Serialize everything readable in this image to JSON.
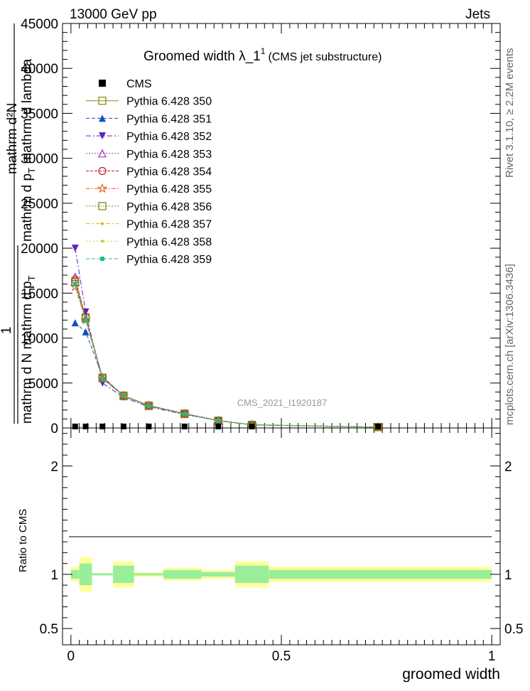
{
  "header": {
    "left": "13000 GeV pp",
    "right": "Jets",
    "title_main": "Groomed width  λ_1",
    "title_sup": "1",
    "title_sub": "(CMS jet substructure)",
    "analysis_tag": "CMS_2021_I1920187",
    "side_rivet": "Rivet 3.1.10, ≥ 2.2M events",
    "side_mcplots": "mcplots.cern.ch [arXiv:1306.3436]"
  },
  "main_ylabel": {
    "num": "mathrm d²N",
    "num2": "mathrm d p",
    "num2_sub": "T",
    "num2_tail": " mathrm d lambda",
    "one": "1",
    "den": "mathrm d N  mathrm d p",
    "den_sub": "T"
  },
  "ratio_ylabel": "Ratio to CMS",
  "xlabel": "groomed width",
  "chart_data": [
    {
      "type": "line",
      "panel": "main",
      "xlim": [
        -0.02,
        1.02
      ],
      "ylim": [
        0,
        45000
      ],
      "yticks": [
        0,
        5000,
        10000,
        15000,
        20000,
        25000,
        30000,
        35000,
        40000,
        45000
      ],
      "ytick_labels": [
        "0",
        "5000",
        "10000",
        "15000",
        "20000",
        "25000",
        "30000",
        "35000",
        "40000",
        "45000"
      ],
      "x": [
        0.01,
        0.035,
        0.075,
        0.125,
        0.185,
        0.27,
        0.35,
        0.43,
        0.73
      ],
      "legend_position": "top-left",
      "series": [
        {
          "name": "CMS",
          "color": "#000000",
          "style": "data",
          "values": [
            10,
            10,
            10,
            10,
            10,
            10,
            10,
            10,
            10
          ]
        },
        {
          "name": "Pythia 6.428 350",
          "color": "#8c8c1a",
          "marker": "square-open",
          "dash": "",
          "values": [
            16200,
            12300,
            5600,
            3600,
            2500,
            1600,
            800,
            350,
            90
          ]
        },
        {
          "name": "Pythia 6.428 351",
          "color": "#1050c0",
          "marker": "triangle-up",
          "dash": "5,3",
          "values": [
            11700,
            10700,
            5700,
            3600,
            2500,
            1600,
            850,
            370,
            95
          ]
        },
        {
          "name": "Pythia 6.428 352",
          "color": "#5b22c0",
          "marker": "triangle-down",
          "dash": "7,3,2,3",
          "values": [
            20000,
            12900,
            5000,
            3400,
            2350,
            1500,
            800,
            340,
            90
          ]
        },
        {
          "name": "Pythia 6.428 353",
          "color": "#b030b0",
          "marker": "triangle-open",
          "dash": "2,2",
          "values": [
            16800,
            12200,
            5600,
            3550,
            2450,
            1550,
            820,
            350,
            90
          ]
        },
        {
          "name": "Pythia 6.428 354",
          "color": "#c01530",
          "marker": "circle-open",
          "dash": "4,2",
          "values": [
            16500,
            12300,
            5600,
            3600,
            2500,
            1600,
            820,
            350,
            90
          ]
        },
        {
          "name": "Pythia 6.428 355",
          "color": "#e06010",
          "marker": "star-open",
          "dash": "6,2,2,2",
          "values": [
            15700,
            12000,
            5500,
            3600,
            2450,
            1550,
            810,
            350,
            90
          ]
        },
        {
          "name": "Pythia 6.428 356",
          "color": "#7a8a10",
          "marker": "square-open",
          "dash": "2,2",
          "values": [
            16300,
            12200,
            5550,
            3550,
            2450,
            1550,
            810,
            350,
            90
          ]
        },
        {
          "name": "Pythia 6.428 357",
          "color": "#d8b400",
          "marker": "dot",
          "dash": "6,3,2,3",
          "values": [
            16100,
            12100,
            5500,
            3550,
            2450,
            1550,
            800,
            345,
            90
          ]
        },
        {
          "name": "Pythia 6.428 358",
          "color": "#b0d020",
          "marker": "dot",
          "dash": "2,3",
          "values": [
            16000,
            12100,
            5500,
            3550,
            2450,
            1550,
            800,
            345,
            90
          ]
        },
        {
          "name": "Pythia 6.428 359",
          "color": "#20b890",
          "marker": "square-small",
          "dash": "5,3",
          "values": [
            16000,
            12000,
            5500,
            3550,
            2450,
            1560,
            810,
            350,
            90
          ]
        }
      ]
    },
    {
      "type": "area",
      "panel": "ratio",
      "xlim": [
        -0.02,
        1.02
      ],
      "ylim": [
        0.35,
        2.35
      ],
      "yticks": [
        0.5,
        1,
        2
      ],
      "ytick_labels": [
        "0.5",
        "1",
        "2"
      ],
      "xticks": [
        0,
        0.5,
        1
      ],
      "xtick_labels": [
        "0",
        "0.5",
        "1"
      ],
      "bins": [
        0.0,
        0.02,
        0.05,
        0.1,
        0.15,
        0.22,
        0.31,
        0.39,
        0.47,
        1.0
      ],
      "outer_band": [
        0.07,
        0.16,
        0.01,
        0.12,
        0.02,
        0.06,
        0.04,
        0.12,
        0.07
      ],
      "inner_band": [
        0.04,
        0.1,
        0.01,
        0.08,
        0.01,
        0.04,
        0.02,
        0.08,
        0.04
      ],
      "band_colors": [
        "#ffff99",
        "#99ee99"
      ],
      "reference": 1
    }
  ]
}
